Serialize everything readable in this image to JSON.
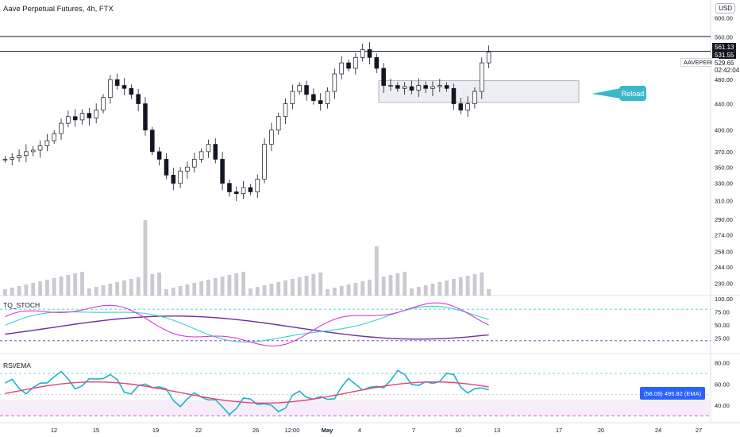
{
  "header": {
    "title": "Aave Perpetual Futures, 4h, FTX",
    "currency": "USD"
  },
  "colors": {
    "up": "#131722",
    "down": "#131722",
    "volume": "#b2b5be",
    "stoch_k": "#d63bd6",
    "stoch_d": "#3dcfcf",
    "stoch_slow": "#6a2fa6",
    "rsi": "#1fb3c4",
    "rsi_ema_up": "#6a2fa6",
    "rsi_ema_down": "#e0457a",
    "callout": "#3ab8c8"
  },
  "annotations": {
    "callout_label": "Reload",
    "ticker_label": "AAVEPERP",
    "price_561": "561.13",
    "price_531": "531.55",
    "price_last": "529.65",
    "countdown": "02:42:04",
    "rsi_value_box": "(58.09) 495.82 (EMA)"
  },
  "panes": {
    "stoch_label": "TQ_STOCH",
    "rsi_label": "RSI/EMA"
  },
  "chart_data": [
    {
      "type": "candlestick",
      "title": "Aave Perpetual Futures, 4h, FTX",
      "x_tick_labels": [
        "12",
        "15",
        "19",
        "22",
        "26",
        "12:00",
        "May",
        "4",
        "7",
        "10",
        "13",
        "17",
        "20",
        "24",
        "27"
      ],
      "y_tick_labels": [
        "600.00",
        "560.00",
        "520.00",
        "480.00",
        "440.00",
        "400.00",
        "370.00",
        "350.00",
        "330.00",
        "310.00",
        "290.00",
        "274.00",
        "258.00",
        "244.00",
        "230.00"
      ],
      "y_scale": "log",
      "horizontal_levels": [
        561.13,
        531.55
      ],
      "last_price": 529.65,
      "zone": {
        "low": 442,
        "high": 478
      },
      "series_close_path": [
        360,
        362,
        365,
        370,
        372,
        378,
        385,
        395,
        410,
        420,
        415,
        425,
        418,
        430,
        450,
        480,
        470,
        465,
        455,
        440,
        400,
        370,
        360,
        340,
        330,
        345,
        350,
        360,
        370,
        380,
        360,
        330,
        320,
        318,
        325,
        320,
        335,
        380,
        400,
        420,
        440,
        460,
        470,
        455,
        445,
        440,
        460,
        490,
        510,
        500,
        520,
        535,
        520,
        500,
        470,
        470,
        465,
        468,
        462,
        470,
        465,
        468,
        470,
        465,
        440,
        430,
        440,
        460,
        510,
        530
      ]
    },
    {
      "type": "line",
      "title": "TQ_STOCH",
      "y_tick_labels": [
        "100.00",
        "75.00",
        "50.00",
        "25.00"
      ],
      "ylim": [
        0,
        100
      ]
    },
    {
      "type": "line",
      "title": "RSI/EMA",
      "y_tick_labels": [
        "80.00",
        "60.00",
        "40.00"
      ],
      "ylim": [
        25,
        85
      ],
      "last_rsi": 58.09,
      "last_ema": 495.82
    }
  ]
}
